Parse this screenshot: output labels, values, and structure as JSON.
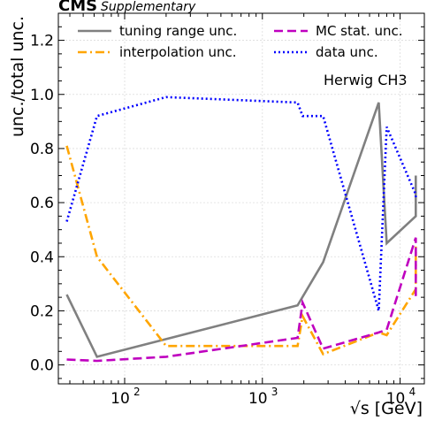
{
  "chart_data": {
    "type": "line",
    "header": {
      "experiment": "CMS",
      "tag": "Supplementary"
    },
    "annotation": "Herwig CH3",
    "xlabel": "√s [GeV]",
    "ylabel": "unc./total unc.",
    "xscale": "log",
    "xlim": [
      33,
      15000
    ],
    "ylim": [
      -0.07,
      1.3
    ],
    "yticks": [
      0.0,
      0.2,
      0.4,
      0.6,
      0.8,
      1.0,
      1.2
    ],
    "ytick_labels": [
      "0.0",
      "0.2",
      "0.4",
      "0.6",
      "0.8",
      "1.0",
      "1.2"
    ],
    "xticks": [
      100,
      1000,
      10000
    ],
    "xtick_labels": [
      "10",
      "10",
      "10"
    ],
    "xtick_exponents": [
      "2",
      "3",
      "4"
    ],
    "grid": true,
    "legend_placement": "top",
    "series": [
      {
        "name": "tuning range unc.",
        "color": "#808080",
        "dash": "solid",
        "x": [
          38,
          63,
          1800,
          2760,
          7000,
          7990,
          13000,
          13000
        ],
        "y": [
          0.26,
          0.03,
          0.22,
          0.38,
          0.97,
          0.45,
          0.55,
          0.7
        ]
      },
      {
        "name": "interpolation unc.",
        "color": "#FFA500",
        "dash": "dashdot",
        "x": [
          38,
          63,
          200,
          1800,
          1960,
          2760,
          7000,
          7990,
          13000,
          13000
        ],
        "y": [
          0.81,
          0.4,
          0.07,
          0.07,
          0.18,
          0.04,
          0.12,
          0.11,
          0.28,
          0.44
        ]
      },
      {
        "name": "MC stat. unc.",
        "color": "#BF00BF",
        "dash": "dashed",
        "x": [
          38,
          63,
          200,
          1800,
          1960,
          2760,
          7000,
          7990,
          13000,
          13000
        ],
        "y": [
          0.02,
          0.015,
          0.03,
          0.1,
          0.23,
          0.06,
          0.12,
          0.13,
          0.47,
          0.25
        ]
      },
      {
        "name": "data unc.",
        "color": "#0000FF",
        "dash": "dotted",
        "x": [
          38,
          63,
          200,
          1800,
          1960,
          2760,
          7000,
          7990,
          13000,
          13000
        ],
        "y": [
          0.53,
          0.92,
          0.99,
          0.97,
          0.92,
          0.92,
          0.2,
          0.88,
          0.63,
          0.62
        ]
      }
    ]
  }
}
